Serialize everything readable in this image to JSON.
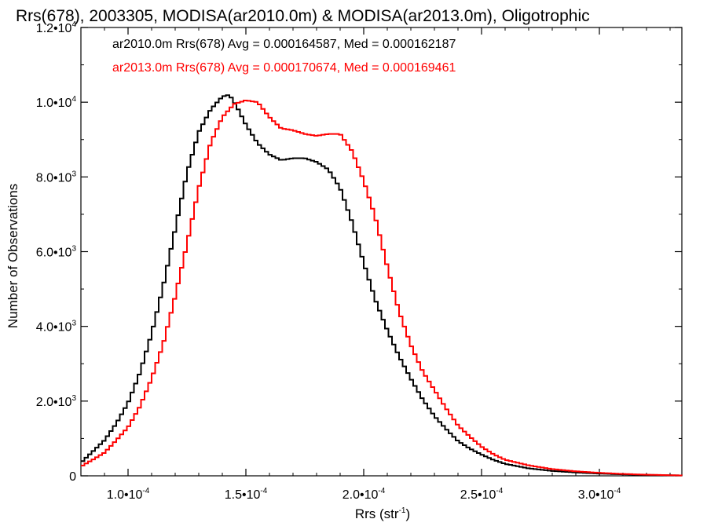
{
  "chart_data": {
    "type": "line",
    "title": "Rrs(678), 2003305, MODISA(ar2010.0m) & MODISA(ar2013.0m), Oligotrophic",
    "xlabel": "Rrs (str",
    "xlabel_sup": "-1",
    "xlabel_close": ")",
    "ylabel": "Number of Observations",
    "xlim": [
      8e-05,
      0.000335
    ],
    "ylim": [
      0,
      12000
    ],
    "x_ticks": [
      {
        "value": 0.0001,
        "mantissa": "1.0•10",
        "exp": "-4"
      },
      {
        "value": 0.00015,
        "mantissa": "1.5•10",
        "exp": "-4"
      },
      {
        "value": 0.0002,
        "mantissa": "2.0•10",
        "exp": "-4"
      },
      {
        "value": 0.00025,
        "mantissa": "2.5•10",
        "exp": "-4"
      },
      {
        "value": 0.0003,
        "mantissa": "3.0•10",
        "exp": "-4"
      }
    ],
    "y_ticks": [
      {
        "value": 0,
        "mantissa": "0",
        "exp": ""
      },
      {
        "value": 2000,
        "mantissa": "2.0•10",
        "exp": "3"
      },
      {
        "value": 4000,
        "mantissa": "4.0•10",
        "exp": "3"
      },
      {
        "value": 6000,
        "mantissa": "6.0•10",
        "exp": "3"
      },
      {
        "value": 8000,
        "mantissa": "8.0•10",
        "exp": "3"
      },
      {
        "value": 10000,
        "mantissa": "1.0•10",
        "exp": "4"
      },
      {
        "value": 12000,
        "mantissa": "1.2•10",
        "exp": "4"
      }
    ],
    "series": [
      {
        "name": "ar2010.0m Rrs(678) Avg = 0.000164587, Med = 0.000162187",
        "color": "#000000",
        "x": [
          8e-05,
          8.5e-05,
          9e-05,
          9.5e-05,
          0.0001,
          0.000105,
          0.00011,
          0.000115,
          0.00012,
          0.000125,
          0.00013,
          0.000135,
          0.00014,
          0.000143,
          0.000146,
          0.00015,
          0.000155,
          0.00016,
          0.000165,
          0.00017,
          0.000175,
          0.00018,
          0.000185,
          0.00019,
          0.000195,
          0.0002,
          0.000205,
          0.00021,
          0.000215,
          0.00022,
          0.000225,
          0.00023,
          0.000235,
          0.00024,
          0.000245,
          0.00025,
          0.000255,
          0.00026,
          0.00027,
          0.00028,
          0.00029,
          0.0003,
          0.00031,
          0.00032,
          0.000335
        ],
        "y": [
          350,
          650,
          950,
          1400,
          1950,
          2750,
          3800,
          5100,
          6600,
          8100,
          9200,
          9800,
          10150,
          10200,
          9900,
          9400,
          8900,
          8600,
          8450,
          8500,
          8500,
          8400,
          8200,
          7700,
          6800,
          5700,
          4700,
          3900,
          3200,
          2600,
          2050,
          1600,
          1250,
          930,
          730,
          570,
          430,
          320,
          200,
          130,
          90,
          60,
          40,
          25,
          10
        ]
      },
      {
        "name": "ar2013.0m Rrs(678) Avg = 0.000170674, Med = 0.000169461",
        "color": "#ff0000",
        "x": [
          8e-05,
          8.5e-05,
          9e-05,
          9.5e-05,
          0.0001,
          0.000105,
          0.00011,
          0.000115,
          0.00012,
          0.000125,
          0.00013,
          0.000135,
          0.00014,
          0.000145,
          0.00015,
          0.000155,
          0.00016,
          0.000165,
          0.00017,
          0.000175,
          0.00018,
          0.000185,
          0.00019,
          0.000195,
          0.0002,
          0.000205,
          0.00021,
          0.000215,
          0.00022,
          0.000225,
          0.00023,
          0.000235,
          0.00024,
          0.000245,
          0.00025,
          0.000255,
          0.00026,
          0.00027,
          0.00028,
          0.00029,
          0.0003,
          0.00031,
          0.00032,
          0.000335
        ],
        "y": [
          250,
          430,
          620,
          950,
          1300,
          1850,
          2600,
          3550,
          4800,
          6200,
          7700,
          8900,
          9600,
          9950,
          10050,
          10000,
          9600,
          9300,
          9250,
          9150,
          9100,
          9150,
          9150,
          8700,
          7900,
          6900,
          5600,
          4400,
          3500,
          2800,
          2300,
          1800,
          1350,
          1050,
          780,
          580,
          430,
          280,
          180,
          120,
          80,
          50,
          30,
          10
        ]
      }
    ],
    "legend_position": "top-left"
  },
  "colors": {
    "background": "#ffffff",
    "axis": "#000000",
    "series_1": "#000000",
    "series_2": "#ff0000"
  }
}
